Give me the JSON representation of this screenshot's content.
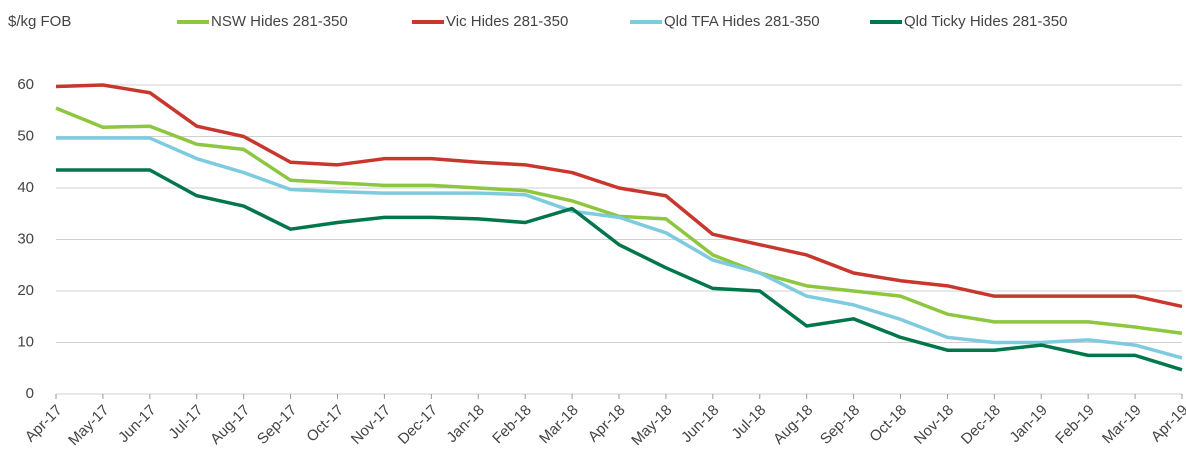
{
  "chart_data": {
    "type": "line",
    "ylabel": "$/kg FOB",
    "categories": [
      "Apr-17",
      "May-17",
      "Jun-17",
      "Jul-17",
      "Aug-17",
      "Sep-17",
      "Oct-17",
      "Nov-17",
      "Dec-17",
      "Jan-18",
      "Feb-18",
      "Mar-18",
      "Apr-18",
      "May-18",
      "Jun-18",
      "Jul-18",
      "Aug-18",
      "Sep-18",
      "Oct-18",
      "Nov-18",
      "Dec-18",
      "Jan-19",
      "Feb-19",
      "Mar-19",
      "Apr-19"
    ],
    "series": [
      {
        "name": "NSW Hides 281-350",
        "color": "#8dc63f",
        "values": [
          55.5,
          51.8,
          52,
          48.5,
          47.5,
          41.5,
          41,
          40.5,
          40.5,
          40,
          39.5,
          37.5,
          34.5,
          34,
          27,
          23.5,
          21,
          20,
          19,
          15.5,
          14,
          14,
          14,
          13,
          11.8
        ]
      },
      {
        "name": "Vic Hides 281-350",
        "color": "#c8372d",
        "values": [
          59.7,
          60,
          58.5,
          52,
          50,
          45,
          44.5,
          45.7,
          45.7,
          45,
          44.5,
          43,
          40,
          38.5,
          31,
          29,
          27,
          23.5,
          22,
          21,
          19,
          19,
          19,
          19,
          17
        ]
      },
      {
        "name": "Qld TFA Hides 281-350",
        "color": "#7ecbe0",
        "values": [
          49.7,
          49.7,
          49.7,
          45.7,
          43,
          39.7,
          39.3,
          39,
          39,
          39,
          38.7,
          35.5,
          34.3,
          31.3,
          26,
          23.5,
          19,
          17.3,
          14.5,
          11,
          10,
          10,
          10.5,
          9.5,
          7
        ]
      },
      {
        "name": "Qld Ticky Hides 281-350",
        "color": "#00764a",
        "values": [
          43.5,
          43.5,
          43.5,
          38.5,
          36.5,
          32,
          33.3,
          34.3,
          34.3,
          34,
          33.3,
          36,
          29,
          24.5,
          20.5,
          20,
          13.2,
          14.6,
          11,
          8.5,
          8.5,
          9.5,
          7.5,
          7.5,
          4.7
        ]
      }
    ],
    "ylim": [
      0,
      60
    ],
    "yticks": [
      0,
      10,
      20,
      30,
      40,
      50,
      60
    ],
    "grid": true
  }
}
